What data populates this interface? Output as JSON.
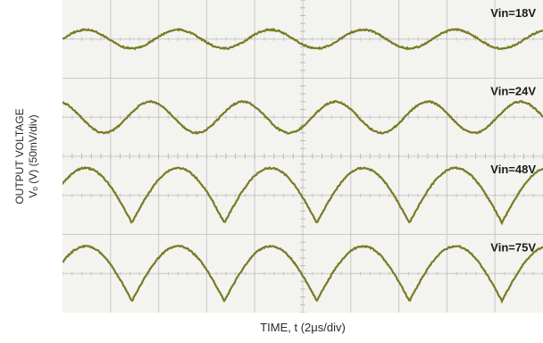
{
  "chart_data": {
    "type": "line",
    "xlabel": "TIME, t (2μs/div)",
    "ylabel_line1": "OUTPUT VOLTAGE",
    "ylabel_line2": "Vₒ (V) (50mV/div)",
    "grid": true,
    "x_divisions": 10,
    "y_divisions": 8,
    "xlim": [
      0,
      20
    ],
    "x_unit": "μs",
    "y_unit": "mV",
    "colors": {
      "trace": "#7a7a24",
      "grid": "#c9c9c9",
      "background": "#f3f3f0"
    },
    "series": [
      {
        "name": "Vin=18V",
        "baseline_division": 1,
        "amplitude_mV": 12,
        "period_us": 3.85,
        "phase": 0.0,
        "spike_at_peak": false
      },
      {
        "name": "Vin=24V",
        "baseline_division": 3,
        "amplitude_mV": 20,
        "period_us": 3.85,
        "phase": 0.3,
        "spike_at_peak": false
      },
      {
        "name": "Vin=48V",
        "baseline_division": 5,
        "amplitude_mV": 35,
        "period_us": 3.85,
        "phase": 0.25,
        "spike_at_peak": true
      },
      {
        "name": "Vin=75V",
        "baseline_division": 7,
        "amplitude_mV": 35,
        "period_us": 3.85,
        "phase": 0.25,
        "spike_at_peak": true
      }
    ]
  }
}
